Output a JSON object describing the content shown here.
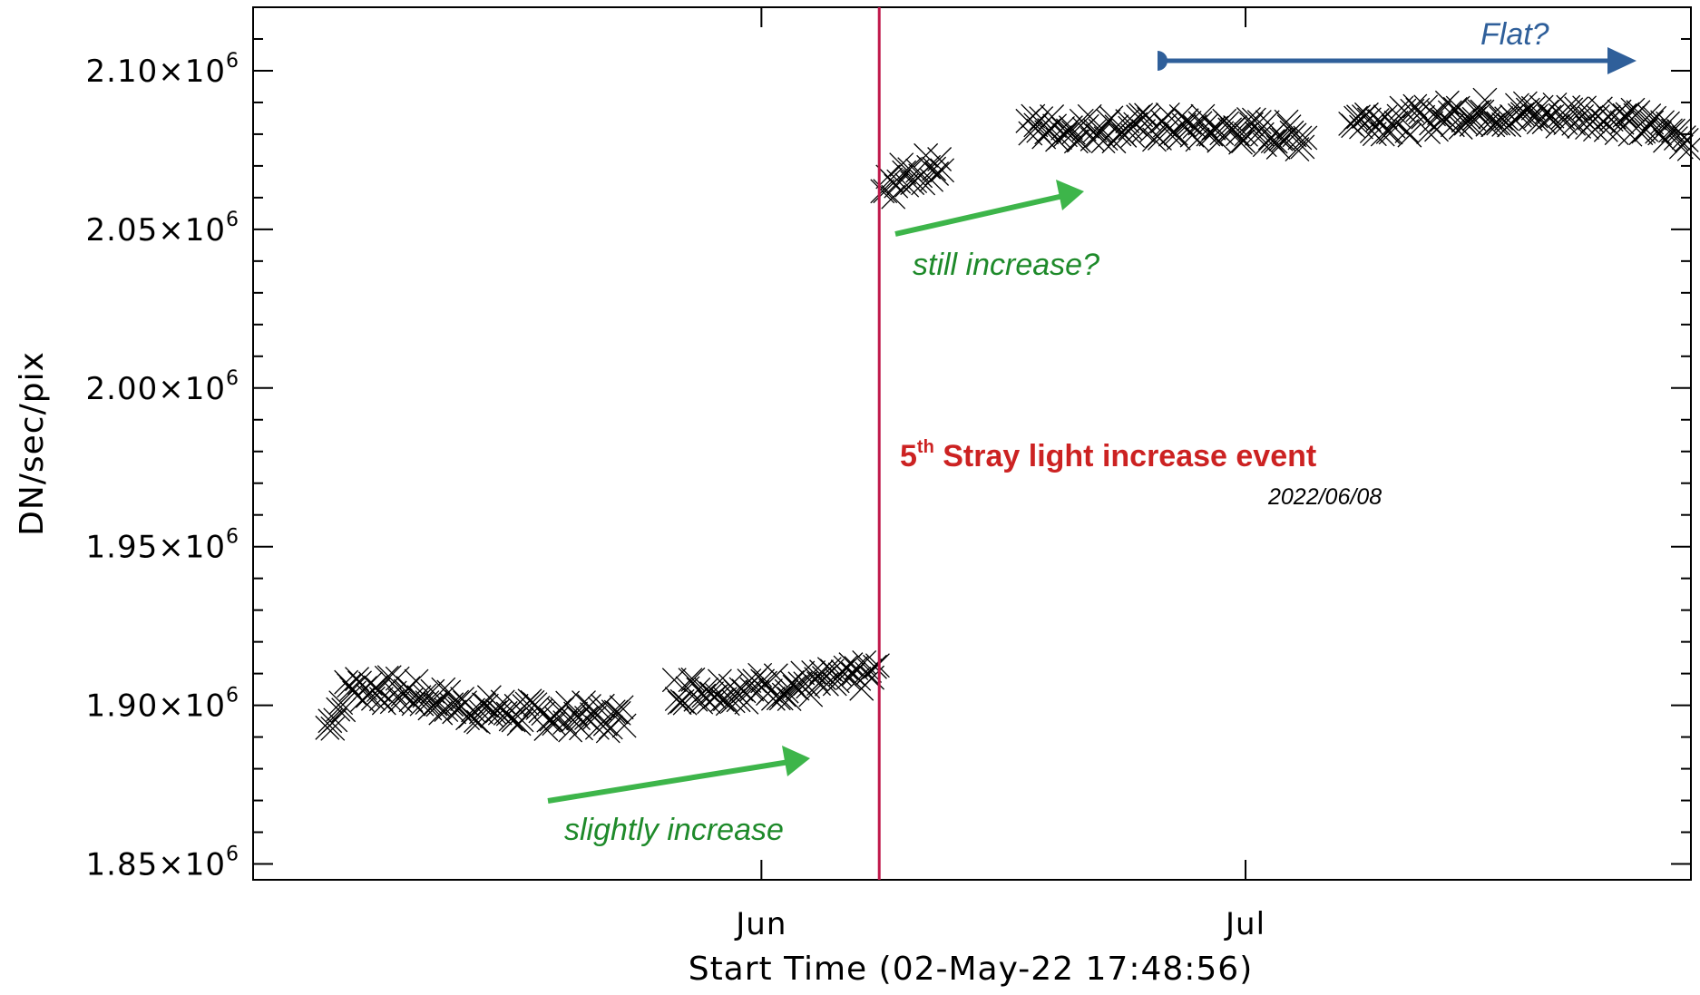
{
  "chart_data": {
    "type": "scatter",
    "xlabel": "Start Time (02-May-22 17:48:56)",
    "ylabel": "DN/sec/pix",
    "x_ticks": [
      {
        "label": "Jun",
        "day": 30
      },
      {
        "label": "Jul",
        "day": 60
      }
    ],
    "xlim": [
      -1.5,
      87.6
    ],
    "y_ticks": [
      {
        "mant": "1.85×10",
        "exp": "6",
        "value": 1850000
      },
      {
        "mant": "1.90×10",
        "exp": "6",
        "value": 1900000
      },
      {
        "mant": "1.95×10",
        "exp": "6",
        "value": 1950000
      },
      {
        "mant": "2.00×10",
        "exp": "6",
        "value": 2000000
      },
      {
        "mant": "2.05×10",
        "exp": "6",
        "value": 2050000
      },
      {
        "mant": "2.10×10",
        "exp": "6",
        "value": 2100000
      }
    ],
    "ylim": [
      1845000,
      2120000
    ],
    "grid": false,
    "marker": "x",
    "marker_color": "#000000",
    "event_line": {
      "day": 37.3,
      "color": "#c0184a"
    },
    "segments": [
      {
        "x_start": 3.1,
        "x_end": 21.5,
        "y_anchors": [
          [
            3.1,
            1893000
          ],
          [
            4.5,
            1906000
          ],
          [
            8,
            1904000
          ],
          [
            12,
            1899000
          ],
          [
            16,
            1897000
          ],
          [
            21.5,
            1896000
          ]
        ]
      },
      {
        "x_start": 24.6,
        "x_end": 37.2,
        "y_anchors": [
          [
            24.6,
            1905000
          ],
          [
            28,
            1905000
          ],
          [
            31,
            1906000
          ],
          [
            34,
            1907000
          ],
          [
            37.2,
            1910000
          ]
        ]
      },
      {
        "x_start": 37.5,
        "x_end": 41.2,
        "y_anchors": [
          [
            37.5,
            2062000
          ],
          [
            39,
            2067000
          ],
          [
            41.2,
            2071000
          ]
        ]
      },
      {
        "x_start": 46.5,
        "x_end": 63.7,
        "y_anchors": [
          [
            46.5,
            2082000
          ],
          [
            50,
            2082000
          ],
          [
            55,
            2082000
          ],
          [
            60,
            2081000
          ],
          [
            63.7,
            2079000
          ]
        ]
      },
      {
        "x_start": 66.5,
        "x_end": 87.5,
        "y_anchors": [
          [
            66.5,
            2085000
          ],
          [
            70,
            2084000
          ],
          [
            74,
            2087000
          ],
          [
            78,
            2086000
          ],
          [
            82,
            2086000
          ],
          [
            87.5,
            2079000
          ]
        ]
      }
    ],
    "annotations": {
      "slightly_increase": {
        "text": "slightly increase",
        "color": "#1e8a2a",
        "arrow_color": "#3db54a"
      },
      "still_increase": {
        "text": "still increase?",
        "color": "#1e8a2a",
        "arrow_color": "#3db54a"
      },
      "flat": {
        "text": "Flat?",
        "color": "#2f5f9a",
        "arrow_color": "#2f5f9a"
      },
      "event": {
        "ordinal": "5",
        "suffix": "th",
        "text": " Stray light increase event",
        "color": "#cc2222"
      },
      "event_date": {
        "text": "2022/06/08",
        "color": "#000000"
      }
    }
  }
}
